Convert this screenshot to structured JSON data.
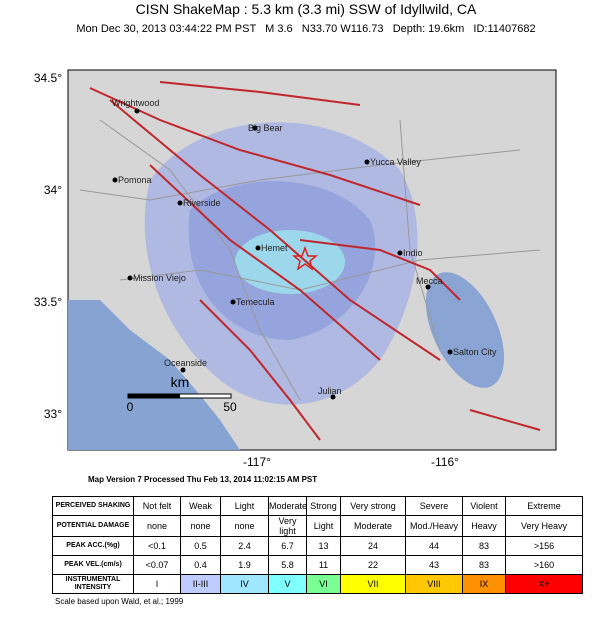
{
  "header": {
    "title": "CISN ShakeMap : 5.3 km (3.3 mi) SSW of Idyllwild, CA",
    "subtitle": "Mon Dec 30, 2013 03:44:22 PM PST   M 3.6   N33.70 W116.73   Depth: 19.6km   ID:11407682"
  },
  "map": {
    "lat_labels": [
      "34.5°",
      "34°",
      "33.5°",
      "33°"
    ],
    "lon_labels": [
      "-117°",
      "-116°"
    ],
    "cities": [
      "Wrightwood",
      "Big Bear",
      "Yucca Valley",
      "Pomona",
      "Riverside",
      "Hemet",
      "Indio",
      "Mission Viejo",
      "Mecca",
      "Temecula",
      "Salton City",
      "Oceanside",
      "Julian"
    ],
    "scale": {
      "unit": "km",
      "start": "0",
      "end": "50"
    }
  },
  "footer": {
    "version": "Map Version 7 Processed Thu Feb 13, 2014 11:02:15 AM PST",
    "note": "Scale based upon Wald, et al.; 1999"
  },
  "table": {
    "rows": [
      [
        "PERCEIVED SHAKING",
        "Not felt",
        "Weak",
        "Light",
        "Moderate",
        "Strong",
        "Very strong",
        "Severe",
        "Violent",
        "Extreme"
      ],
      [
        "POTENTIAL DAMAGE",
        "none",
        "none",
        "none",
        "Very light",
        "Light",
        "Moderate",
        "Mod./Heavy",
        "Heavy",
        "Very Heavy"
      ],
      [
        "PEAK ACC.(%g)",
        "<0.1",
        "0.5",
        "2.4",
        "6.7",
        "13",
        "24",
        "44",
        "83",
        ">156"
      ],
      [
        "PEAK VEL.(cm/s)",
        "<0.07",
        "0.4",
        "1.9",
        "5.8",
        "11",
        "22",
        "43",
        "83",
        ">160"
      ],
      [
        "INSTRUMENTAL INTENSITY",
        "I",
        "II-III",
        "IV",
        "V",
        "VI",
        "VII",
        "VIII",
        "IX",
        "X+"
      ]
    ]
  }
}
